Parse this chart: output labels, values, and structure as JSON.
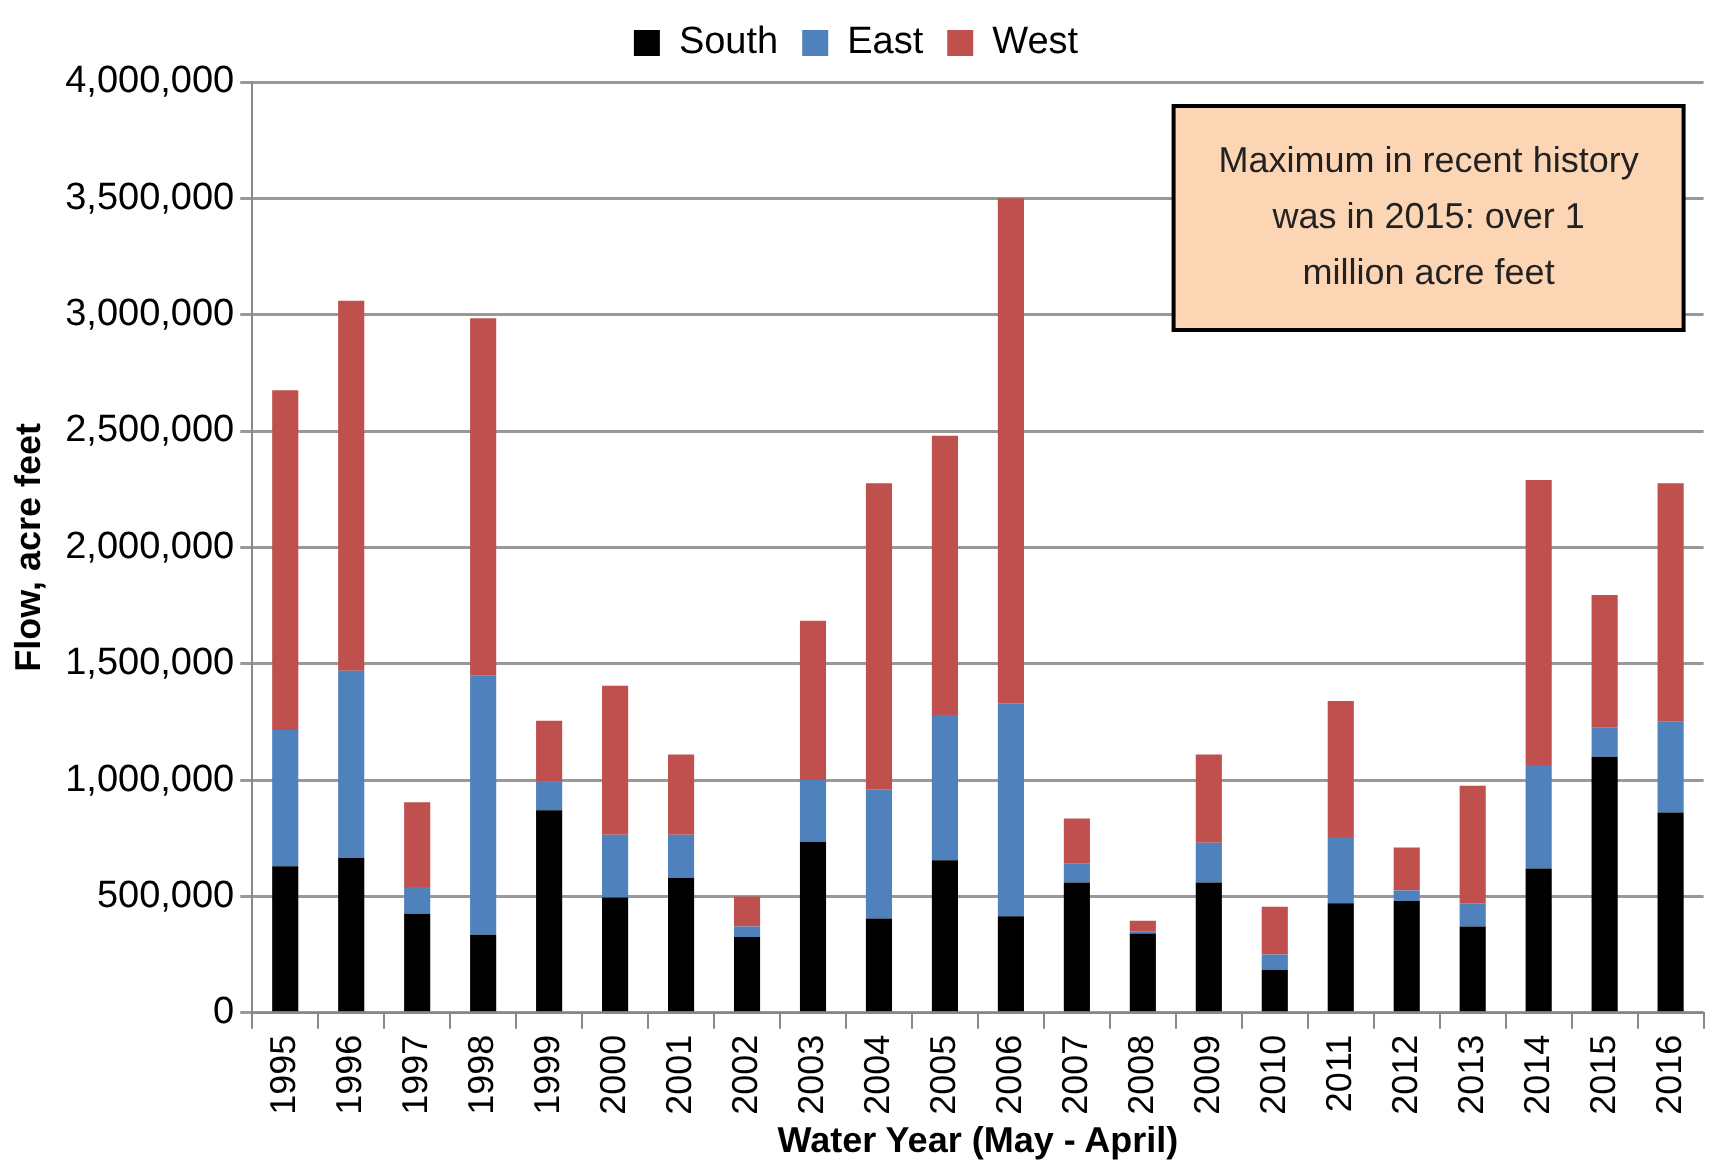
{
  "chart_data": {
    "type": "bar",
    "stacked": true,
    "xlabel": "Water Year (May - April)",
    "ylabel": "Flow, acre feet",
    "categories": [
      "1995",
      "1996",
      "1997",
      "1998",
      "1999",
      "2000",
      "2001",
      "2002",
      "2003",
      "2004",
      "2005",
      "2006",
      "2007",
      "2008",
      "2009",
      "2010",
      "2011",
      "2012",
      "2013",
      "2014",
      "2015",
      "2016"
    ],
    "series": [
      {
        "name": "South",
        "color": "#000000",
        "values": [
          630000,
          665000,
          425000,
          335000,
          870000,
          495000,
          580000,
          325000,
          735000,
          405000,
          655000,
          415000,
          560000,
          340000,
          560000,
          185000,
          470000,
          480000,
          370000,
          620000,
          1100000,
          860000
        ]
      },
      {
        "name": "East",
        "color": "#4f81bd",
        "values": [
          585000,
          805000,
          115000,
          1115000,
          125000,
          270000,
          185000,
          45000,
          265000,
          555000,
          625000,
          915000,
          80000,
          10000,
          170000,
          65000,
          285000,
          45000,
          100000,
          445000,
          125000,
          390000
        ]
      },
      {
        "name": "West",
        "color": "#c0504d",
        "values": [
          1460000,
          1590000,
          365000,
          1535000,
          260000,
          640000,
          345000,
          130000,
          685000,
          1315000,
          1200000,
          2170000,
          195000,
          45000,
          380000,
          205000,
          585000,
          185000,
          505000,
          1225000,
          570000,
          1025000
        ]
      }
    ],
    "ylim": [
      0,
      4000000
    ],
    "yticks": [
      0,
      {
        "value": 500000,
        "label": "500,000"
      },
      {
        "value": 1000000,
        "label": "1,000,000"
      },
      {
        "value": 1500000,
        "label": "1,500,000"
      },
      {
        "value": 2000000,
        "label": "2,000,000"
      },
      {
        "value": 2500000,
        "label": "2,500,000"
      },
      {
        "value": 3000000,
        "label": "3,000,000"
      },
      {
        "value": 3500000,
        "label": "3,500,000"
      },
      {
        "value": 4000000,
        "label": "4,000,000"
      }
    ],
    "grid": "y",
    "legend": "top",
    "annotations": [
      "Maximum in recent history was in 2015: over 1 million acre feet"
    ]
  }
}
